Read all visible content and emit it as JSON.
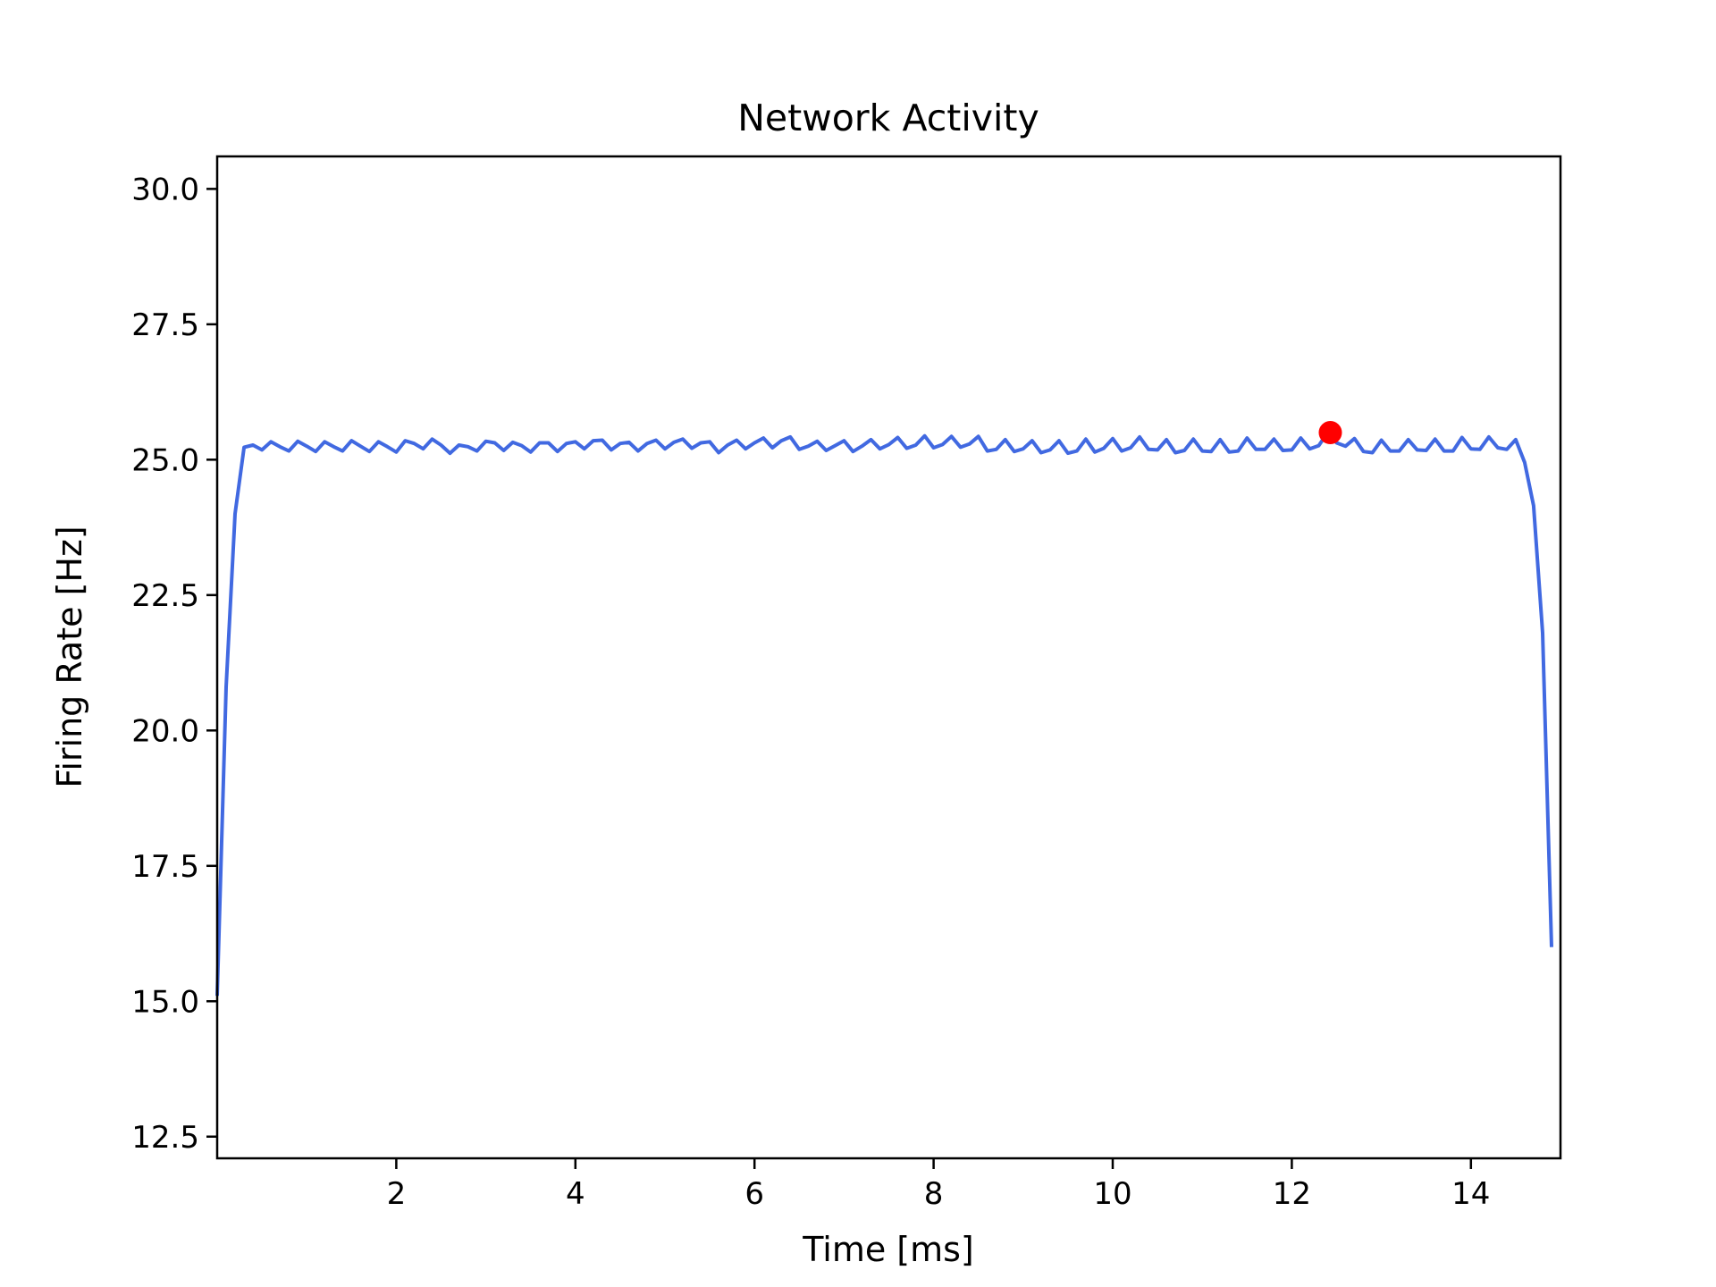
{
  "chart_data": {
    "type": "line",
    "title": "Network Activity",
    "xlabel": "Time [ms]",
    "ylabel": "Firing Rate [Hz]",
    "xlim": [
      0,
      15
    ],
    "ylim": [
      12.1,
      30.6
    ],
    "x_ticks": [
      2,
      4,
      6,
      8,
      10,
      12,
      14
    ],
    "x_tick_labels": [
      "2",
      "4",
      "6",
      "8",
      "10",
      "12",
      "14"
    ],
    "y_ticks": [
      12.5,
      15,
      17.5,
      20,
      22.5,
      25,
      27.5,
      30
    ],
    "y_tick_labels": [
      "12.5",
      "15.0",
      "17.5",
      "20.0",
      "22.5",
      "25.0",
      "27.5",
      "30.0"
    ],
    "grid": false,
    "legend": "none",
    "series": [
      {
        "color": "#4169e1",
        "x": [
          0.0,
          0.1,
          0.2,
          0.3,
          0.4,
          0.5,
          0.6,
          0.7,
          0.8,
          0.9,
          1.0,
          1.1,
          1.2,
          1.3,
          1.4,
          1.5,
          1.6,
          1.7,
          1.8,
          1.9,
          2.0,
          2.1,
          2.2,
          2.3,
          2.4,
          2.5,
          2.6,
          2.7,
          2.8,
          2.9,
          3.0,
          3.1,
          3.2,
          3.3,
          3.4,
          3.5,
          3.6,
          3.7,
          3.8,
          3.9,
          4.0,
          4.1,
          4.2,
          4.3,
          4.4,
          4.5,
          4.6,
          4.7,
          4.8,
          4.9,
          5.0,
          5.1,
          5.2,
          5.3,
          5.4,
          5.5,
          5.6,
          5.7,
          5.8,
          5.9,
          6.0,
          6.1,
          6.2,
          6.3,
          6.4,
          6.5,
          6.6,
          6.7,
          6.8,
          6.9,
          7.0,
          7.1,
          7.2,
          7.3,
          7.4,
          7.5,
          7.6,
          7.7,
          7.8,
          7.9,
          8.0,
          8.1,
          8.2,
          8.3,
          8.4,
          8.5,
          8.6,
          8.7,
          8.8,
          8.9,
          9.0,
          9.1,
          9.2,
          9.3,
          9.4,
          9.5,
          9.6,
          9.7,
          9.8,
          9.9,
          10.0,
          10.1,
          10.2,
          10.3,
          10.4,
          10.5,
          10.6,
          10.7,
          10.8,
          10.9,
          11.0,
          11.1,
          11.2,
          11.3,
          11.4,
          11.5,
          11.6,
          11.7,
          11.8,
          11.9,
          12.0,
          12.1,
          12.2,
          12.3,
          12.4,
          12.5,
          12.6,
          12.7,
          12.8,
          12.9,
          13.0,
          13.1,
          13.2,
          13.3,
          13.4,
          13.5,
          13.6,
          13.7,
          13.8,
          13.9,
          14.0,
          14.1,
          14.2,
          14.3,
          14.4,
          14.5,
          14.6,
          14.7,
          14.8,
          14.9
        ],
        "y": [
          15.1,
          20.8,
          24.0,
          25.23,
          25.27,
          25.18,
          25.33,
          25.24,
          25.16,
          25.34,
          25.25,
          25.15,
          25.33,
          25.24,
          25.16,
          25.35,
          25.25,
          25.15,
          25.33,
          25.24,
          25.14,
          25.35,
          25.3,
          25.2,
          25.38,
          25.27,
          25.12,
          25.27,
          25.24,
          25.16,
          25.34,
          25.31,
          25.17,
          25.32,
          25.26,
          25.14,
          25.31,
          25.31,
          25.15,
          25.3,
          25.33,
          25.2,
          25.35,
          25.36,
          25.18,
          25.3,
          25.32,
          25.16,
          25.3,
          25.36,
          25.2,
          25.32,
          25.38,
          25.21,
          25.31,
          25.33,
          25.13,
          25.27,
          25.36,
          25.2,
          25.31,
          25.4,
          25.22,
          25.35,
          25.42,
          25.19,
          25.25,
          25.34,
          25.17,
          25.26,
          25.35,
          25.15,
          25.25,
          25.37,
          25.2,
          25.28,
          25.41,
          25.21,
          25.27,
          25.44,
          25.22,
          25.28,
          25.43,
          25.23,
          25.29,
          25.43,
          25.16,
          25.19,
          25.37,
          25.15,
          25.2,
          25.35,
          25.13,
          25.18,
          25.35,
          25.12,
          25.16,
          25.38,
          25.14,
          25.21,
          25.39,
          25.16,
          25.22,
          25.42,
          25.19,
          25.18,
          25.37,
          25.13,
          25.17,
          25.38,
          25.16,
          25.15,
          25.37,
          25.14,
          25.16,
          25.4,
          25.19,
          25.19,
          25.38,
          25.17,
          25.18,
          25.4,
          25.2,
          25.26,
          25.5,
          25.31,
          25.25,
          25.39,
          25.15,
          25.13,
          25.36,
          25.16,
          25.16,
          25.37,
          25.18,
          25.17,
          25.38,
          25.16,
          25.16,
          25.41,
          25.2,
          25.19,
          25.42,
          25.22,
          25.19,
          25.37,
          24.95,
          24.15,
          21.8,
          16.0
        ]
      }
    ],
    "highlight_point": {
      "x": 12.43,
      "y": 25.5,
      "color": "#ff0000"
    }
  }
}
